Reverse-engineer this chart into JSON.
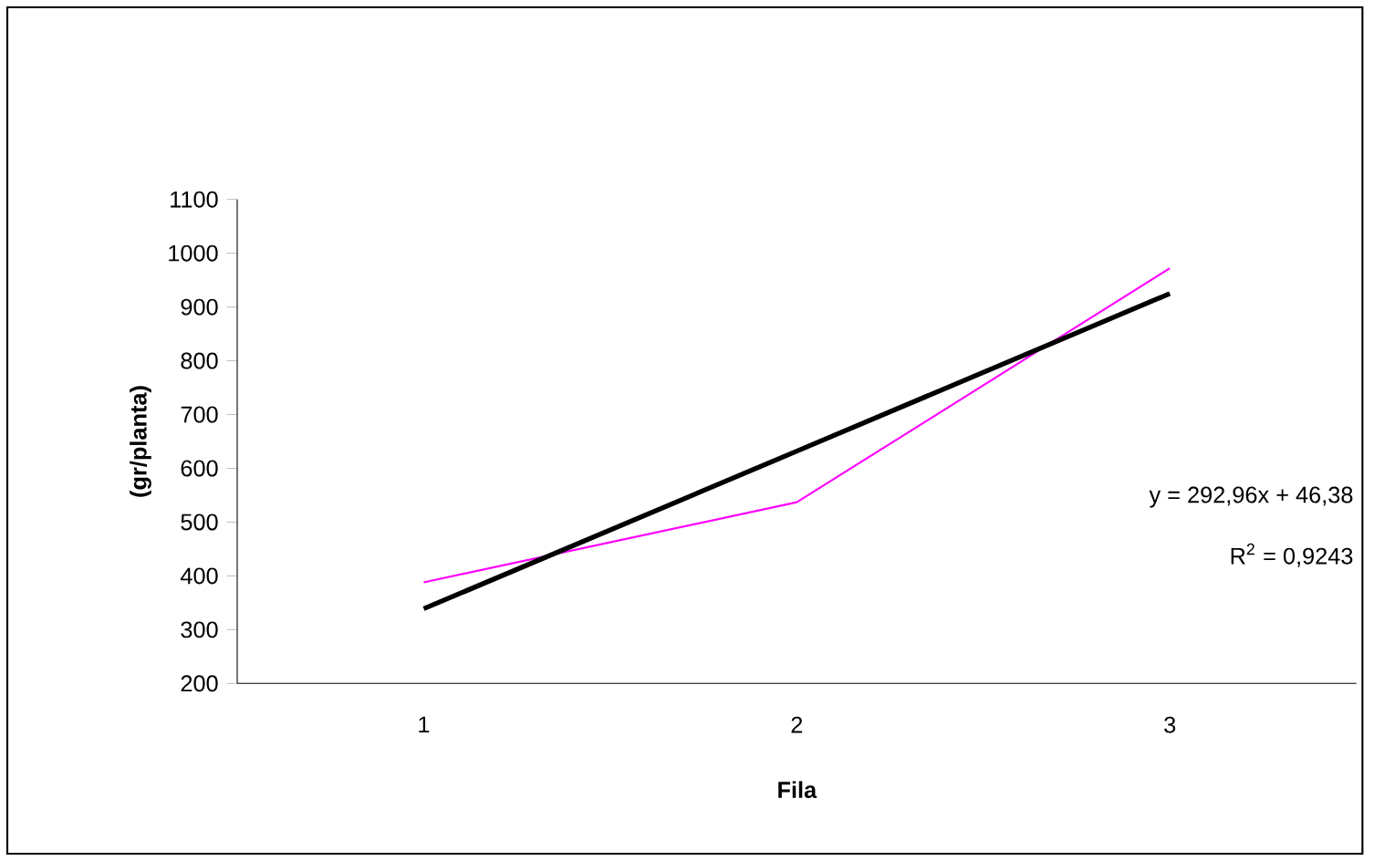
{
  "chart_data": {
    "type": "line",
    "xlabel": "Fila",
    "ylabel": "(gr/planta)",
    "categories": [
      "1",
      "2",
      "3"
    ],
    "series": [
      {
        "color": "#ff00ff",
        "values": [
          388,
          537,
          972
        ]
      },
      {
        "type": "line",
        "color": "#000000",
        "values": [
          339,
          632,
          925
        ]
      }
    ],
    "ylim": [
      200,
      1100
    ],
    "yticks": [
      200,
      300,
      400,
      500,
      600,
      700,
      800,
      900,
      1000,
      1100
    ],
    "annotations": [
      "y = 292,96x + 46,38",
      "R$^{2}$ = 0,9243"
    ],
    "marker": "none"
  }
}
